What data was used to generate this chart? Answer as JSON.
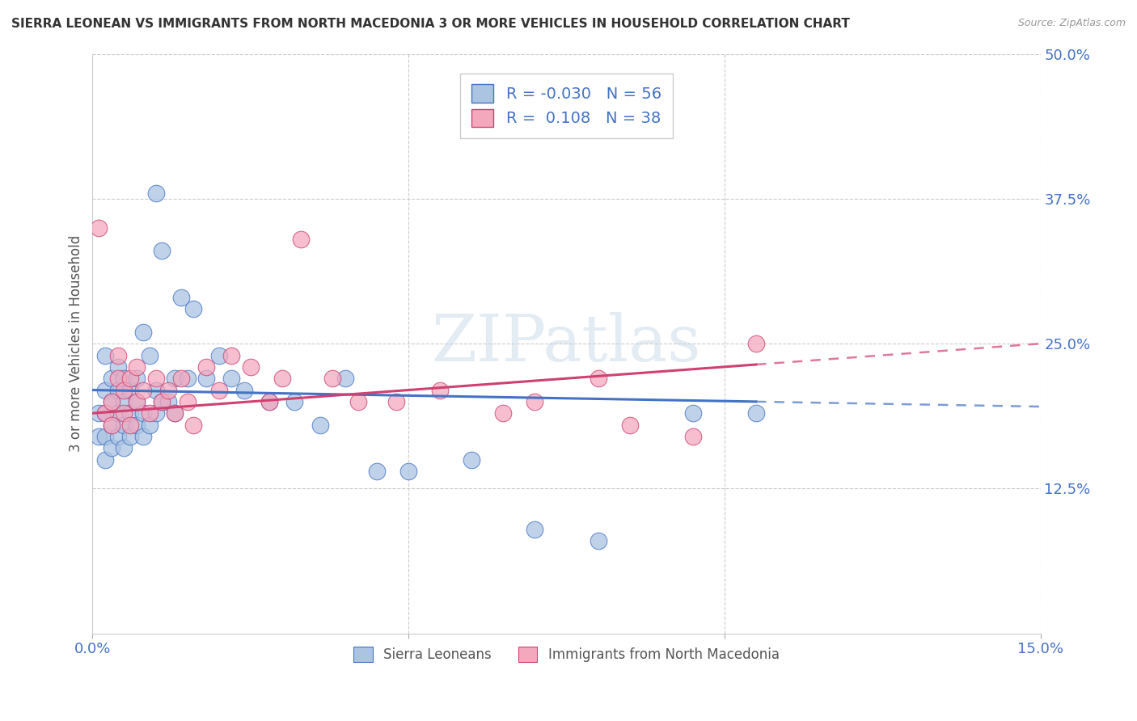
{
  "title": "SIERRA LEONEAN VS IMMIGRANTS FROM NORTH MACEDONIA 3 OR MORE VEHICLES IN HOUSEHOLD CORRELATION CHART",
  "source": "Source: ZipAtlas.com",
  "ylabel": "3 or more Vehicles in Household",
  "xlim": [
    0.0,
    0.15
  ],
  "ylim": [
    0.0,
    0.5
  ],
  "xtick_positions": [
    0.0,
    0.05,
    0.1,
    0.15
  ],
  "xtick_labels": [
    "0.0%",
    "",
    "",
    "15.0%"
  ],
  "ytick_positions": [
    0.0,
    0.125,
    0.25,
    0.375,
    0.5
  ],
  "ytick_labels": [
    "",
    "12.5%",
    "25.0%",
    "37.5%",
    "50.0%"
  ],
  "blue_R": -0.03,
  "blue_N": 56,
  "pink_R": 0.108,
  "pink_N": 38,
  "blue_color": "#aac4e2",
  "pink_color": "#f4a8be",
  "blue_line_color": "#4472c4",
  "pink_line_color": "#d04070",
  "watermark": "ZIPatlas",
  "legend_labels": [
    "Sierra Leoneans",
    "Immigrants from North Macedonia"
  ],
  "blue_scatter_x": [
    0.001,
    0.001,
    0.002,
    0.002,
    0.002,
    0.002,
    0.002,
    0.003,
    0.003,
    0.003,
    0.003,
    0.004,
    0.004,
    0.004,
    0.004,
    0.005,
    0.005,
    0.005,
    0.005,
    0.006,
    0.006,
    0.006,
    0.007,
    0.007,
    0.007,
    0.008,
    0.008,
    0.008,
    0.009,
    0.009,
    0.01,
    0.01,
    0.01,
    0.011,
    0.011,
    0.012,
    0.013,
    0.013,
    0.014,
    0.015,
    0.016,
    0.018,
    0.02,
    0.022,
    0.024,
    0.028,
    0.032,
    0.036,
    0.04,
    0.045,
    0.05,
    0.06,
    0.07,
    0.08,
    0.095,
    0.105
  ],
  "blue_scatter_y": [
    0.17,
    0.19,
    0.15,
    0.17,
    0.19,
    0.21,
    0.24,
    0.16,
    0.18,
    0.2,
    0.22,
    0.17,
    0.19,
    0.21,
    0.23,
    0.16,
    0.18,
    0.2,
    0.22,
    0.17,
    0.19,
    0.21,
    0.18,
    0.2,
    0.22,
    0.17,
    0.19,
    0.26,
    0.18,
    0.24,
    0.19,
    0.21,
    0.38,
    0.2,
    0.33,
    0.2,
    0.19,
    0.22,
    0.29,
    0.22,
    0.28,
    0.22,
    0.24,
    0.22,
    0.21,
    0.2,
    0.2,
    0.18,
    0.22,
    0.14,
    0.14,
    0.15,
    0.09,
    0.08,
    0.19,
    0.19
  ],
  "pink_scatter_x": [
    0.001,
    0.002,
    0.003,
    0.003,
    0.004,
    0.004,
    0.005,
    0.005,
    0.006,
    0.006,
    0.007,
    0.007,
    0.008,
    0.009,
    0.01,
    0.011,
    0.012,
    0.013,
    0.014,
    0.015,
    0.016,
    0.018,
    0.02,
    0.022,
    0.025,
    0.028,
    0.03,
    0.033,
    0.038,
    0.042,
    0.048,
    0.055,
    0.065,
    0.07,
    0.08,
    0.085,
    0.095,
    0.105
  ],
  "pink_scatter_y": [
    0.35,
    0.19,
    0.18,
    0.2,
    0.22,
    0.24,
    0.19,
    0.21,
    0.18,
    0.22,
    0.2,
    0.23,
    0.21,
    0.19,
    0.22,
    0.2,
    0.21,
    0.19,
    0.22,
    0.2,
    0.18,
    0.23,
    0.21,
    0.24,
    0.23,
    0.2,
    0.22,
    0.34,
    0.22,
    0.2,
    0.2,
    0.21,
    0.19,
    0.2,
    0.22,
    0.18,
    0.17,
    0.25
  ]
}
